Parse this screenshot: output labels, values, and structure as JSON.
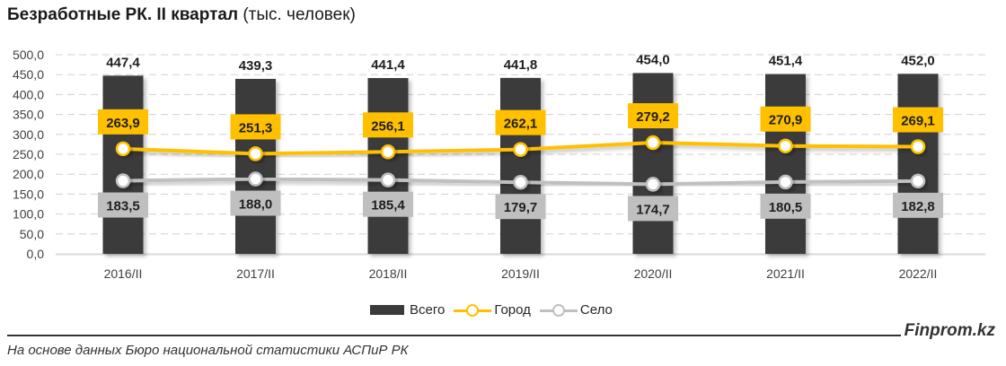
{
  "title": {
    "bold": "Безработные РК. II квартал",
    "normal": "(тыс. человек)"
  },
  "colors": {
    "total": "#3a3a3a",
    "city": "#ffc000",
    "village": "#bfbfbf",
    "grid": "#d0d0d0"
  },
  "legend": {
    "total": "Всего",
    "city": "Город",
    "village": "Село"
  },
  "footer": {
    "source": "На основе данных Бюро национальной статистики АСПиР РК",
    "brand": "Finprom.kz"
  },
  "chart_data": {
    "type": "bar",
    "title": "Безработные РК. II квартал (тыс. человек)",
    "xlabel": "",
    "ylabel": "",
    "ylim": [
      0,
      500
    ],
    "yticks": [
      "0,0",
      "50,0",
      "100,0",
      "150,0",
      "200,0",
      "250,0",
      "300,0",
      "350,0",
      "400,0",
      "450,0",
      "500,0"
    ],
    "grid": true,
    "legend_position": "bottom",
    "categories": [
      "2016/II",
      "2017/II",
      "2018/II",
      "2019/II",
      "2020/II",
      "2021/II",
      "2022/II"
    ],
    "series": [
      {
        "name": "Всего",
        "type": "bar",
        "values": [
          447.4,
          439.3,
          441.4,
          441.8,
          454.0,
          451.4,
          452.0
        ],
        "labels": [
          "447,4",
          "439,3",
          "441,4",
          "441,8",
          "454,0",
          "451,4",
          "452,0"
        ]
      },
      {
        "name": "Город",
        "type": "line",
        "values": [
          263.9,
          251.3,
          256.1,
          262.1,
          279.2,
          270.9,
          269.1
        ],
        "labels": [
          "263,9",
          "251,3",
          "256,1",
          "262,1",
          "279,2",
          "270,9",
          "269,1"
        ]
      },
      {
        "name": "Село",
        "type": "line",
        "values": [
          183.5,
          188.0,
          185.4,
          179.7,
          174.7,
          180.5,
          182.8
        ],
        "labels": [
          "183,5",
          "188,0",
          "185,4",
          "179,7",
          "174,7",
          "180,5",
          "182,8"
        ]
      }
    ]
  }
}
